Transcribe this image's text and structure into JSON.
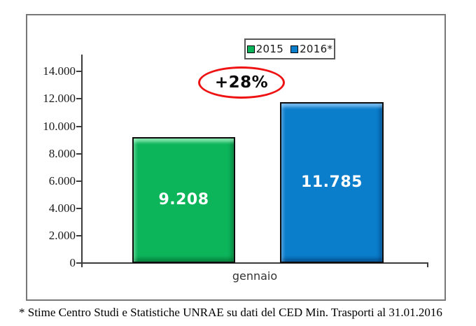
{
  "chart_data": {
    "type": "bar",
    "title": "",
    "categories": [
      "gennaio"
    ],
    "series": [
      {
        "name": "2015",
        "values": [
          9208
        ],
        "label": "9.208",
        "color": "#0cb45a"
      },
      {
        "name": "2016*",
        "values": [
          11785
        ],
        "label": "11.785",
        "color": "#0a7dcb"
      }
    ],
    "ylim": [
      0,
      14000
    ],
    "y_ticks": [
      0,
      2000,
      4000,
      6000,
      8000,
      10000,
      12000,
      14000
    ],
    "y_tick_labels": [
      "0",
      "2.000",
      "4.000",
      "6.000",
      "8.000",
      "10.000",
      "12.000",
      "14.000"
    ],
    "grid": false,
    "legend_position": "top-center",
    "annotation": {
      "text": "+28%",
      "ellipse_color": "#ee1212"
    }
  },
  "legend": {
    "items": [
      {
        "label": "2015",
        "color": "#0cb45a"
      },
      {
        "label": "2016*",
        "color": "#0a7dcb"
      }
    ]
  },
  "x_axis": {
    "category_label": "gennaio"
  },
  "footnote": {
    "text": "* Stime Centro Studi e Statistiche UNRAE su dati del CED Min. Trasporti al 31.01.2016"
  }
}
